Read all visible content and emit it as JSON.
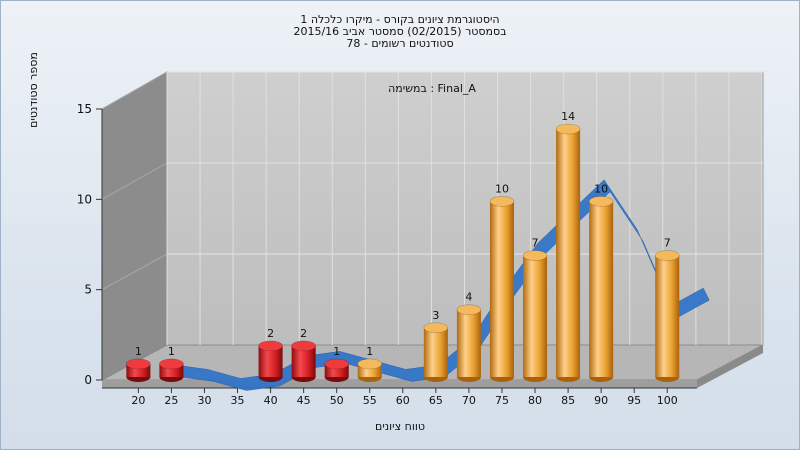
{
  "colors": {
    "fail_bar": "#d41e22",
    "pass_bar": "#e9a030",
    "curve": "#2f73c9",
    "curve_shadow": "#555555",
    "back_wall": "#c6c6c6",
    "left_wall": "#8c8c8c",
    "floor": "#b6b6b6"
  },
  "chart_data": {
    "type": "bar",
    "title_lines": [
      "היסטוגרמת ציונים בקורס - מיקרו כלכלה 1",
      "בסמסטר  (02/2015)  סמסטר אביב 2015/16",
      "סטודנטים רשומים - 78"
    ],
    "annotation": "במשימה : Final_A",
    "xlabel": "טווח ציונים",
    "ylabel": "מספר סטודנטים",
    "categories": [
      "20",
      "25",
      "30",
      "35",
      "40",
      "45",
      "50",
      "55",
      "60",
      "65",
      "70",
      "75",
      "80",
      "85",
      "90",
      "95",
      "100"
    ],
    "values": [
      1,
      1,
      0,
      0,
      2,
      2,
      1,
      1,
      0,
      3,
      4,
      10,
      7,
      14,
      10,
      0,
      7
    ],
    "pass_from_category": "55",
    "yticks": [
      0,
      5,
      10,
      15
    ],
    "ylim": [
      0,
      15
    ],
    "grid": true,
    "curve": "smoothed distribution ribbon (blue)"
  }
}
